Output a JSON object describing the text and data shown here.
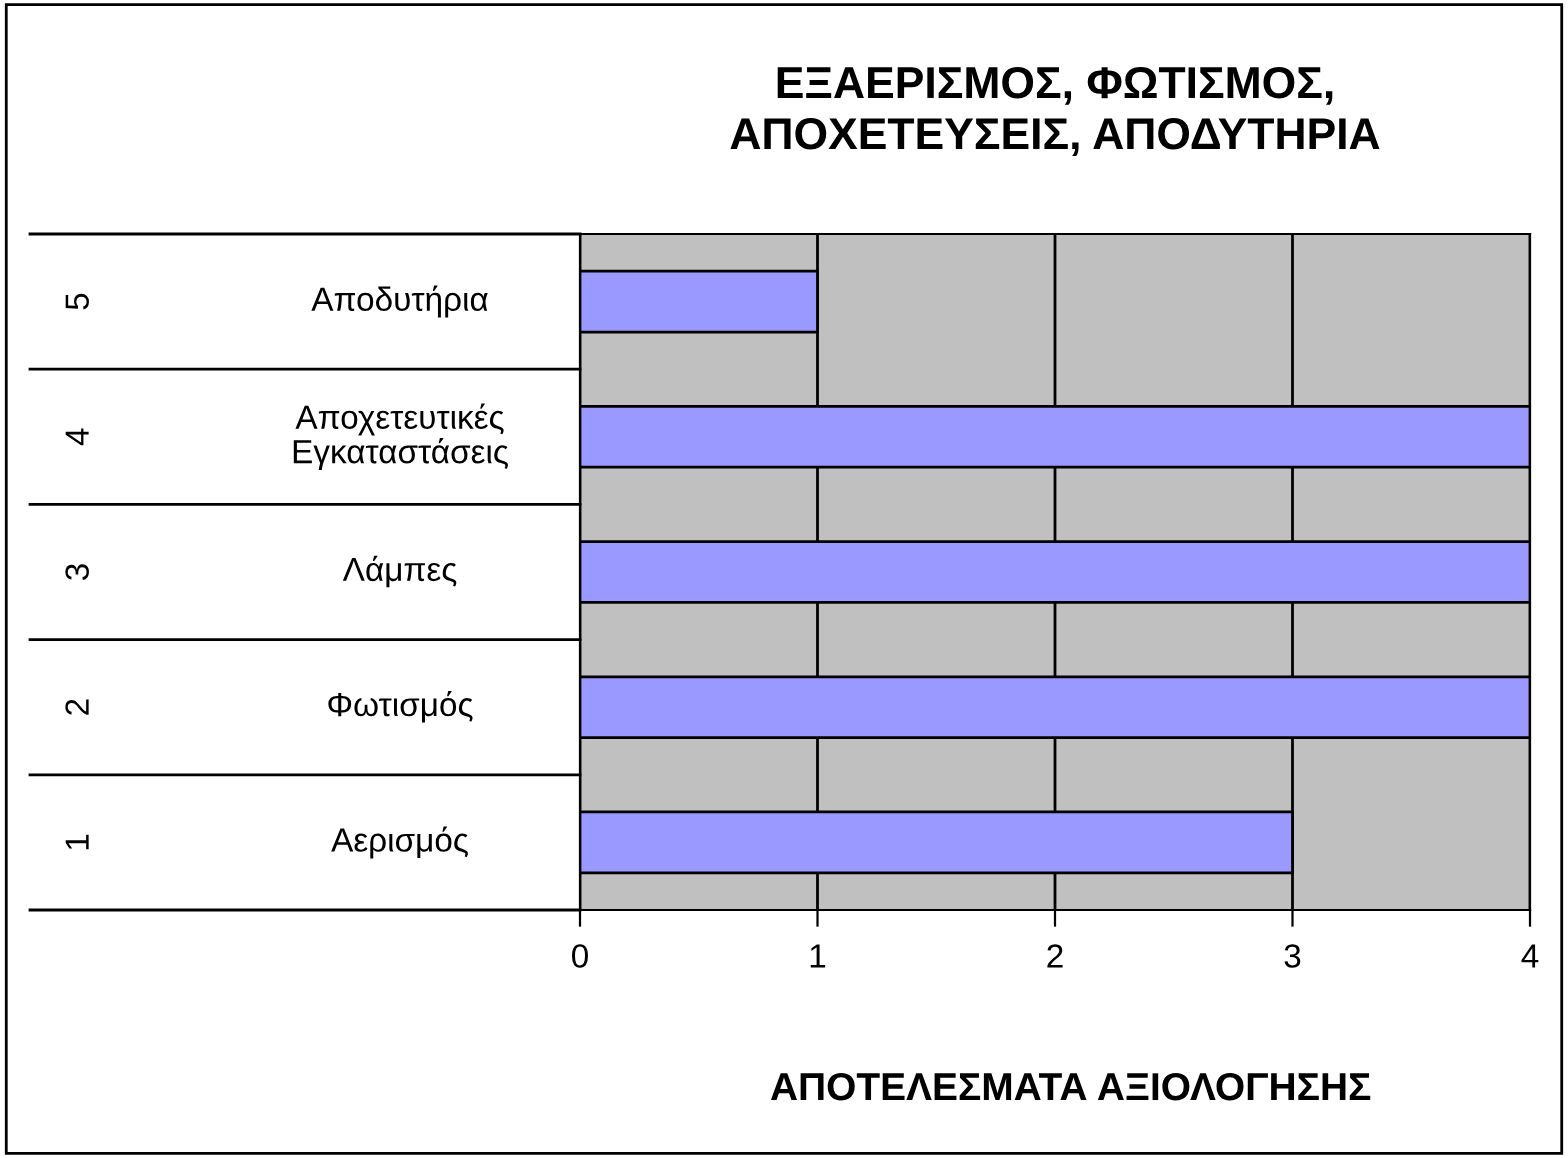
{
  "chart_data": {
    "type": "bar",
    "orientation": "horizontal",
    "title": "ΕΞΑΕΡΙΣΜΟΣ, ΦΩΤΙΣΜΟΣ,\nΑΠΟΧΕΤΕΥΣΕΙΣ, ΑΠΟΔΥΤΗΡΙΑ",
    "xlabel": "ΑΠΟΤΕΛΕΣΜΑΤΑ ΑΞΙΟΛΟΓΗΣΗΣ",
    "categories": [
      "Αποδυτήρια",
      "Αποχετευτικές Εγκαταστάσεις",
      "Λάμπες",
      "Φωτισμός",
      "Αερισμός"
    ],
    "annotations": [
      "5",
      "4",
      "3",
      "2",
      "1"
    ],
    "values": [
      1,
      4,
      4,
      4,
      3
    ],
    "color": "#9999ff",
    "xlim": [
      0,
      4
    ],
    "xticks": [
      0,
      1,
      2,
      3,
      4
    ],
    "grid": "x",
    "legend": false
  }
}
